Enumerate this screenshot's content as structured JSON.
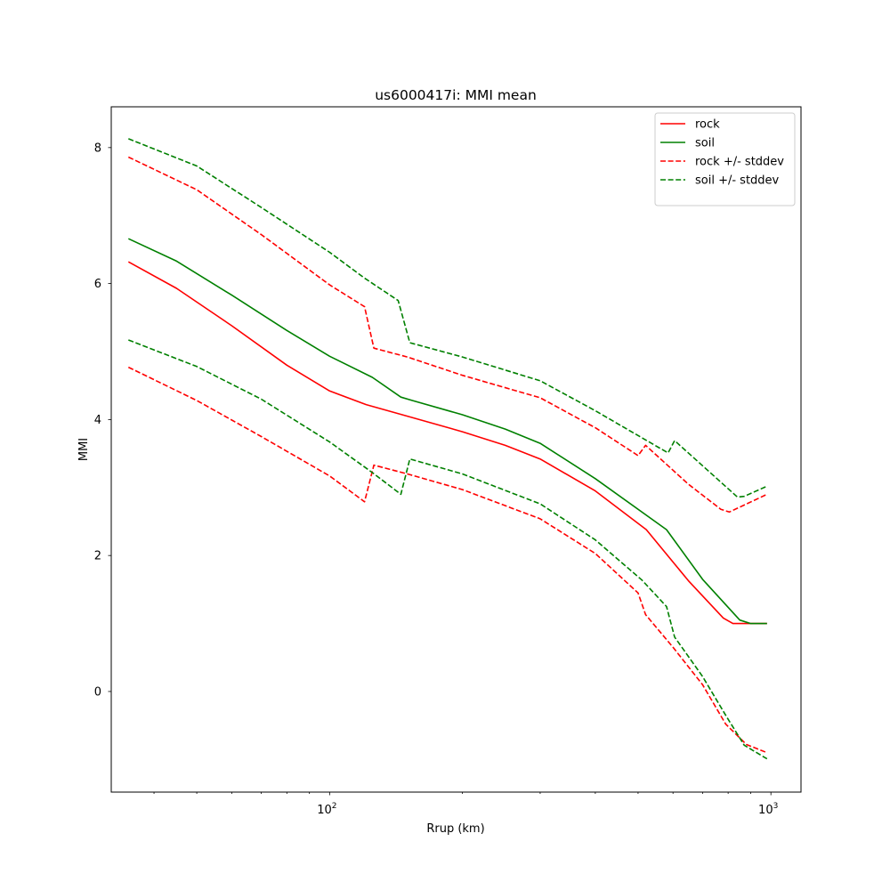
{
  "chart_data": {
    "type": "line",
    "title": "us6000417i: MMI mean",
    "xlabel": "Rrup (km)",
    "ylabel": "MMI",
    "xscale": "log",
    "xlim": [
      32,
      1170
    ],
    "ylim": [
      -1.48,
      8.6
    ],
    "grid": false,
    "legend_position": "top-right",
    "x_ticks": [
      {
        "value": 100,
        "base": "10",
        "exp": "2"
      },
      {
        "value": 1000,
        "base": "10",
        "exp": "3"
      }
    ],
    "y_ticks": [
      {
        "value": 0,
        "label": "0"
      },
      {
        "value": 2,
        "label": "2"
      },
      {
        "value": 4,
        "label": "4"
      },
      {
        "value": 6,
        "label": "6"
      },
      {
        "value": 8,
        "label": "8"
      }
    ],
    "series": [
      {
        "name": "rock",
        "color": "#ff0000",
        "dashed": false,
        "points": [
          [
            35,
            6.32
          ],
          [
            45,
            5.93
          ],
          [
            60,
            5.38
          ],
          [
            80,
            4.8
          ],
          [
            100,
            4.42
          ],
          [
            121,
            4.22
          ],
          [
            150,
            4.05
          ],
          [
            200,
            3.82
          ],
          [
            250,
            3.62
          ],
          [
            300,
            3.42
          ],
          [
            400,
            2.95
          ],
          [
            522,
            2.38
          ],
          [
            650,
            1.63
          ],
          [
            780,
            1.08
          ],
          [
            820,
            1.0
          ],
          [
            980,
            1.0
          ]
        ]
      },
      {
        "name": "soil",
        "color": "#008000",
        "dashed": false,
        "points": [
          [
            35,
            6.66
          ],
          [
            45,
            6.33
          ],
          [
            60,
            5.83
          ],
          [
            80,
            5.31
          ],
          [
            100,
            4.93
          ],
          [
            125,
            4.62
          ],
          [
            145,
            4.33
          ],
          [
            154,
            4.28
          ],
          [
            200,
            4.07
          ],
          [
            250,
            3.86
          ],
          [
            300,
            3.65
          ],
          [
            400,
            3.13
          ],
          [
            580,
            2.38
          ],
          [
            700,
            1.65
          ],
          [
            850,
            1.05
          ],
          [
            900,
            1.0
          ],
          [
            980,
            1.0
          ]
        ]
      },
      {
        "name": "rock +/- stddev",
        "color": "#ff0000",
        "dashed": true,
        "points": [
          [
            35,
            7.86
          ],
          [
            50,
            7.38
          ],
          [
            70,
            6.72
          ],
          [
            100,
            5.98
          ],
          [
            120,
            5.66
          ],
          [
            126,
            5.05
          ],
          [
            150,
            4.92
          ],
          [
            200,
            4.65
          ],
          [
            300,
            4.32
          ],
          [
            400,
            3.88
          ],
          [
            500,
            3.47
          ],
          [
            520,
            3.62
          ],
          [
            650,
            3.05
          ],
          [
            770,
            2.68
          ],
          [
            805,
            2.64
          ],
          [
            980,
            2.9
          ]
        ]
      },
      {
        "name": "rock +/- stddev",
        "color": "#ff0000",
        "dashed": true,
        "points": [
          [
            35,
            4.77
          ],
          [
            50,
            4.28
          ],
          [
            70,
            3.75
          ],
          [
            100,
            3.17
          ],
          [
            120,
            2.79
          ],
          [
            126,
            3.33
          ],
          [
            150,
            3.2
          ],
          [
            200,
            2.97
          ],
          [
            300,
            2.54
          ],
          [
            400,
            2.03
          ],
          [
            500,
            1.45
          ],
          [
            520,
            1.13
          ],
          [
            600,
            0.65
          ],
          [
            700,
            0.1
          ],
          [
            790,
            -0.48
          ],
          [
            880,
            -0.78
          ],
          [
            980,
            -0.9
          ]
        ]
      },
      {
        "name": "soil +/- stddev",
        "color": "#008000",
        "dashed": true,
        "points": [
          [
            35,
            8.13
          ],
          [
            50,
            7.73
          ],
          [
            70,
            7.12
          ],
          [
            100,
            6.46
          ],
          [
            120,
            6.08
          ],
          [
            143,
            5.75
          ],
          [
            152,
            5.13
          ],
          [
            200,
            4.92
          ],
          [
            300,
            4.57
          ],
          [
            400,
            4.13
          ],
          [
            560,
            3.58
          ],
          [
            585,
            3.51
          ],
          [
            605,
            3.69
          ],
          [
            700,
            3.32
          ],
          [
            840,
            2.86
          ],
          [
            870,
            2.87
          ],
          [
            980,
            3.02
          ]
        ]
      },
      {
        "name": "soil +/- stddev",
        "color": "#008000",
        "dashed": true,
        "points": [
          [
            35,
            5.17
          ],
          [
            50,
            4.78
          ],
          [
            70,
            4.3
          ],
          [
            100,
            3.67
          ],
          [
            125,
            3.22
          ],
          [
            145,
            2.9
          ],
          [
            152,
            3.42
          ],
          [
            200,
            3.2
          ],
          [
            300,
            2.76
          ],
          [
            400,
            2.23
          ],
          [
            510,
            1.64
          ],
          [
            580,
            1.25
          ],
          [
            605,
            0.8
          ],
          [
            700,
            0.22
          ],
          [
            790,
            -0.35
          ],
          [
            870,
            -0.79
          ],
          [
            980,
            -0.99
          ]
        ]
      }
    ],
    "legend": [
      {
        "label": "rock",
        "color": "#ff0000",
        "dashed": false
      },
      {
        "label": "soil",
        "color": "#008000",
        "dashed": false
      },
      {
        "label": "rock +/- stddev",
        "color": "#ff0000",
        "dashed": true
      },
      {
        "label": "soil +/- stddev",
        "color": "#008000",
        "dashed": true
      }
    ]
  }
}
